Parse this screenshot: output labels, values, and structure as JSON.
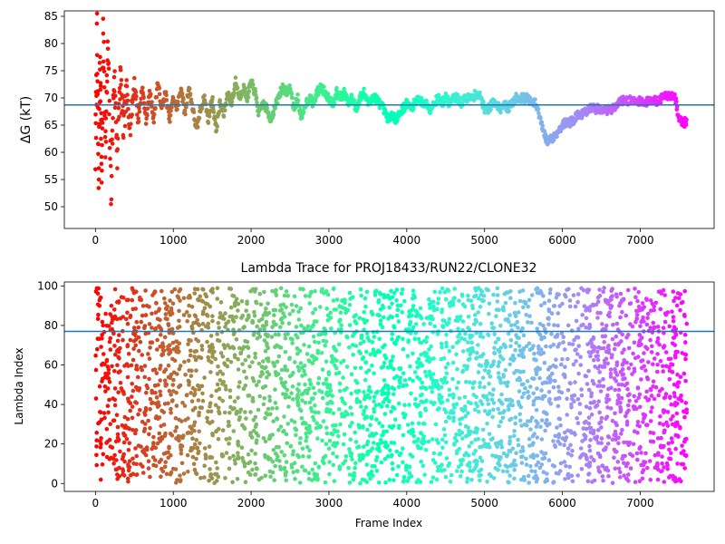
{
  "chart_data": [
    {
      "type": "scatter",
      "title": "",
      "xlabel": "",
      "ylabel": "ΔG (kT)",
      "xlim": [
        -400,
        7950
      ],
      "ylim": [
        46,
        86
      ],
      "xticks": [
        0,
        1000,
        2000,
        3000,
        4000,
        5000,
        6000,
        7000
      ],
      "yticks": [
        50,
        55,
        60,
        65,
        70,
        75,
        80,
        85
      ],
      "reference_line": 68.7,
      "reference_color": "#1f77b4",
      "colormap": "rainbow",
      "trace": [
        [
          0,
          60
        ],
        [
          20,
          80
        ],
        [
          40,
          55
        ],
        [
          60,
          78
        ],
        [
          80,
          56
        ],
        [
          100,
          82
        ],
        [
          130,
          62
        ],
        [
          160,
          79
        ],
        [
          200,
          53
        ],
        [
          240,
          75
        ],
        [
          280,
          60
        ],
        [
          320,
          74
        ],
        [
          360,
          64
        ],
        [
          400,
          71
        ],
        [
          450,
          65
        ],
        [
          500,
          73
        ],
        [
          550,
          66
        ],
        [
          600,
          72
        ],
        [
          650,
          66
        ],
        [
          700,
          71
        ],
        [
          750,
          66
        ],
        [
          800,
          73
        ],
        [
          850,
          68
        ],
        [
          900,
          71
        ],
        [
          950,
          66
        ],
        [
          1000,
          70
        ],
        [
          1050,
          68
        ],
        [
          1100,
          72
        ],
        [
          1150,
          67
        ],
        [
          1200,
          72
        ],
        [
          1250,
          68
        ],
        [
          1300,
          64
        ],
        [
          1350,
          68
        ],
        [
          1400,
          70
        ],
        [
          1450,
          66
        ],
        [
          1500,
          70
        ],
        [
          1550,
          64
        ],
        [
          1600,
          69
        ],
        [
          1650,
          67
        ],
        [
          1700,
          71
        ],
        [
          1750,
          69
        ],
        [
          1800,
          73
        ],
        [
          1850,
          70
        ],
        [
          1900,
          72
        ],
        [
          1950,
          70
        ],
        [
          2000,
          73
        ],
        [
          2050,
          71
        ],
        [
          2100,
          67
        ],
        [
          2150,
          69
        ],
        [
          2200,
          68
        ],
        [
          2250,
          66
        ],
        [
          2300,
          68
        ],
        [
          2350,
          70
        ],
        [
          2400,
          72
        ],
        [
          2450,
          71
        ],
        [
          2500,
          72
        ],
        [
          2550,
          68
        ],
        [
          2600,
          70
        ],
        [
          2650,
          66
        ],
        [
          2700,
          69
        ],
        [
          2750,
          70
        ],
        [
          2800,
          69
        ],
        [
          2850,
          71
        ],
        [
          2900,
          72
        ],
        [
          2950,
          71
        ],
        [
          3000,
          70
        ],
        [
          3050,
          69
        ],
        [
          3100,
          71
        ],
        [
          3150,
          70
        ],
        [
          3200,
          71
        ],
        [
          3250,
          69
        ],
        [
          3300,
          70
        ],
        [
          3350,
          68
        ],
        [
          3400,
          70
        ],
        [
          3450,
          71
        ],
        [
          3500,
          69
        ],
        [
          3550,
          70
        ],
        [
          3600,
          70
        ],
        [
          3650,
          69
        ],
        [
          3700,
          68
        ],
        [
          3750,
          66
        ],
        [
          3800,
          67
        ],
        [
          3850,
          66
        ],
        [
          3900,
          67
        ],
        [
          3950,
          68
        ],
        [
          4000,
          69
        ],
        [
          4050,
          68
        ],
        [
          4100,
          69
        ],
        [
          4150,
          70
        ],
        [
          4200,
          69
        ],
        [
          4250,
          69
        ],
        [
          4300,
          68
        ],
        [
          4350,
          69
        ],
        [
          4400,
          70
        ],
        [
          4450,
          69
        ],
        [
          4500,
          70
        ],
        [
          4550,
          69
        ],
        [
          4600,
          70
        ],
        [
          4650,
          70
        ],
        [
          4700,
          69
        ],
        [
          4750,
          70
        ],
        [
          4800,
          70
        ],
        [
          4850,
          70
        ],
        [
          4900,
          71
        ],
        [
          4950,
          70
        ],
        [
          5000,
          68
        ],
        [
          5050,
          68
        ],
        [
          5100,
          69
        ],
        [
          5150,
          69
        ],
        [
          5200,
          68
        ],
        [
          5250,
          69
        ],
        [
          5300,
          68
        ],
        [
          5350,
          69
        ],
        [
          5400,
          70
        ],
        [
          5450,
          70
        ],
        [
          5500,
          70
        ],
        [
          5550,
          70
        ],
        [
          5600,
          69
        ],
        [
          5650,
          69
        ],
        [
          5700,
          67
        ],
        [
          5750,
          64
        ],
        [
          5800,
          62
        ],
        [
          5850,
          62.5
        ],
        [
          5900,
          63
        ],
        [
          5950,
          64
        ],
        [
          6000,
          65
        ],
        [
          6050,
          65.5
        ],
        [
          6100,
          65.5
        ],
        [
          6150,
          66
        ],
        [
          6200,
          67
        ],
        [
          6250,
          67
        ],
        [
          6300,
          67.5
        ],
        [
          6350,
          68
        ],
        [
          6400,
          68
        ],
        [
          6450,
          68
        ],
        [
          6500,
          68
        ],
        [
          6550,
          67.5
        ],
        [
          6600,
          68
        ],
        [
          6650,
          68
        ],
        [
          6700,
          69
        ],
        [
          6750,
          69.5
        ],
        [
          6800,
          69.5
        ],
        [
          6850,
          69.5
        ],
        [
          6900,
          69.5
        ],
        [
          6950,
          69.5
        ],
        [
          7000,
          69.5
        ],
        [
          7050,
          69
        ],
        [
          7100,
          69.5
        ],
        [
          7150,
          69.5
        ],
        [
          7200,
          69.5
        ],
        [
          7250,
          69.5
        ],
        [
          7300,
          70.5
        ],
        [
          7350,
          70.5
        ],
        [
          7400,
          70.5
        ],
        [
          7450,
          70
        ],
        [
          7500,
          66
        ],
        [
          7550,
          65.5
        ],
        [
          7600,
          65.5
        ]
      ]
    },
    {
      "type": "scatter",
      "title": "Lambda Trace for PROJ18433/RUN22/CLONE32",
      "xlabel": "Frame Index",
      "ylabel": "Lambda Index",
      "xlim": [
        -400,
        7950
      ],
      "ylim": [
        -4,
        102
      ],
      "xticks": [
        0,
        1000,
        2000,
        3000,
        4000,
        5000,
        6000,
        7000
      ],
      "yticks": [
        0,
        20,
        40,
        60,
        80,
        100
      ],
      "reference_line": 77,
      "reference_color": "#1f77b4",
      "colormap": "rainbow",
      "x_extent": [
        0,
        7600
      ],
      "lambda_range": [
        0,
        99
      ]
    }
  ]
}
